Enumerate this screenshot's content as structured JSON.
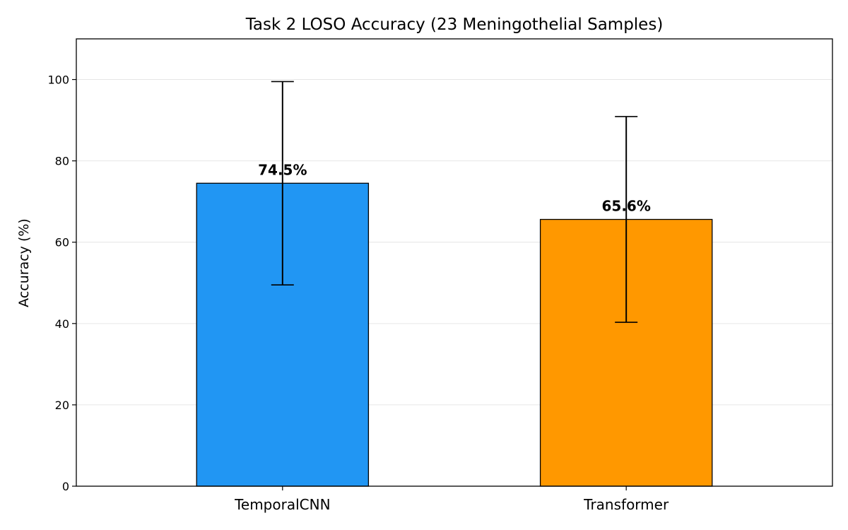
{
  "chart_data": {
    "type": "bar",
    "title": "Task 2 LOSO Accuracy (23 Meningothelial Samples)",
    "xlabel": "",
    "ylabel": "Accuracy (%)",
    "categories": [
      "TemporalCNN",
      "Transformer"
    ],
    "values": [
      74.5,
      65.6
    ],
    "errors": [
      25.0,
      25.3
    ],
    "data_labels": [
      "74.5%",
      "65.6%"
    ],
    "colors": [
      "#2196F3",
      "#FF9800"
    ],
    "ylim": [
      0,
      110
    ],
    "yticks": [
      0,
      20,
      40,
      60,
      80,
      100
    ],
    "grid": "y",
    "legend": "none"
  }
}
